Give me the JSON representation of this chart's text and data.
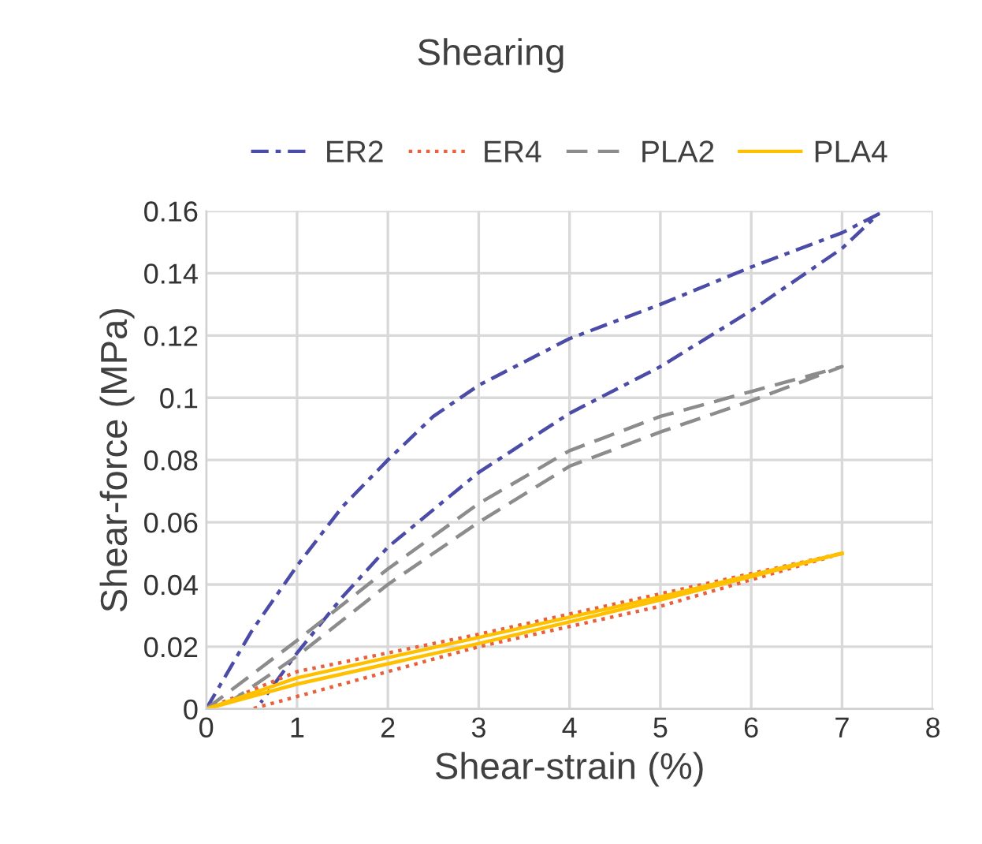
{
  "chart_data": {
    "type": "line",
    "title": "Shearing",
    "xlabel": "Shear-strain (%)",
    "ylabel": "Shear-force (MPa)",
    "xlim": [
      0,
      8
    ],
    "xticks": [
      0,
      1,
      2,
      3,
      4,
      5,
      6,
      7,
      8
    ],
    "ylim": [
      0,
      0.16
    ],
    "yticks": [
      0,
      0.02,
      0.04,
      0.06,
      0.08,
      0.1,
      0.12,
      0.14,
      0.16
    ],
    "grid": true,
    "legend": "top",
    "marker": "none",
    "series": [
      {
        "name": "ER2",
        "color": "#4b4ba8",
        "line_style": "dashdot",
        "x": [
          0,
          0.5,
          1,
          1.5,
          2,
          2.5,
          3,
          4,
          5,
          6,
          7,
          7.4,
          7,
          6,
          5,
          4,
          3,
          2,
          1.5,
          1,
          0.6
        ],
        "values": [
          0,
          0.025,
          0.046,
          0.065,
          0.08,
          0.094,
          0.104,
          0.119,
          0.13,
          0.142,
          0.153,
          0.159,
          0.148,
          0.128,
          0.11,
          0.095,
          0.076,
          0.052,
          0.036,
          0.018,
          0.002
        ]
      },
      {
        "name": "ER4",
        "color": "#e8603c",
        "line_style": "dotted",
        "x": [
          0,
          1,
          3,
          5,
          7,
          5,
          3,
          1,
          0.5
        ],
        "values": [
          0,
          0.012,
          0.024,
          0.037,
          0.05,
          0.033,
          0.02,
          0.004,
          0
        ]
      },
      {
        "name": "PLA2",
        "color": "#8c8c8c",
        "line_style": "dashed",
        "x": [
          0,
          1,
          2,
          3,
          4,
          5,
          6,
          7,
          6,
          5,
          4,
          3,
          2,
          1,
          0.3
        ],
        "values": [
          0,
          0.022,
          0.045,
          0.066,
          0.083,
          0.094,
          0.102,
          0.11,
          0.099,
          0.089,
          0.078,
          0.06,
          0.04,
          0.017,
          0.003
        ]
      },
      {
        "name": "PLA4",
        "color": "#ffc000",
        "line_style": "solid",
        "x": [
          0,
          1,
          3,
          5,
          7
        ],
        "values": [
          0,
          0.01,
          0.023,
          0.036,
          0.05
        ]
      },
      {
        "color": "#ffc000",
        "line_style": "solid",
        "x": [
          7,
          5,
          3,
          1,
          0
        ],
        "values": [
          0.05,
          0.035,
          0.021,
          0.008,
          0
        ]
      }
    ]
  }
}
